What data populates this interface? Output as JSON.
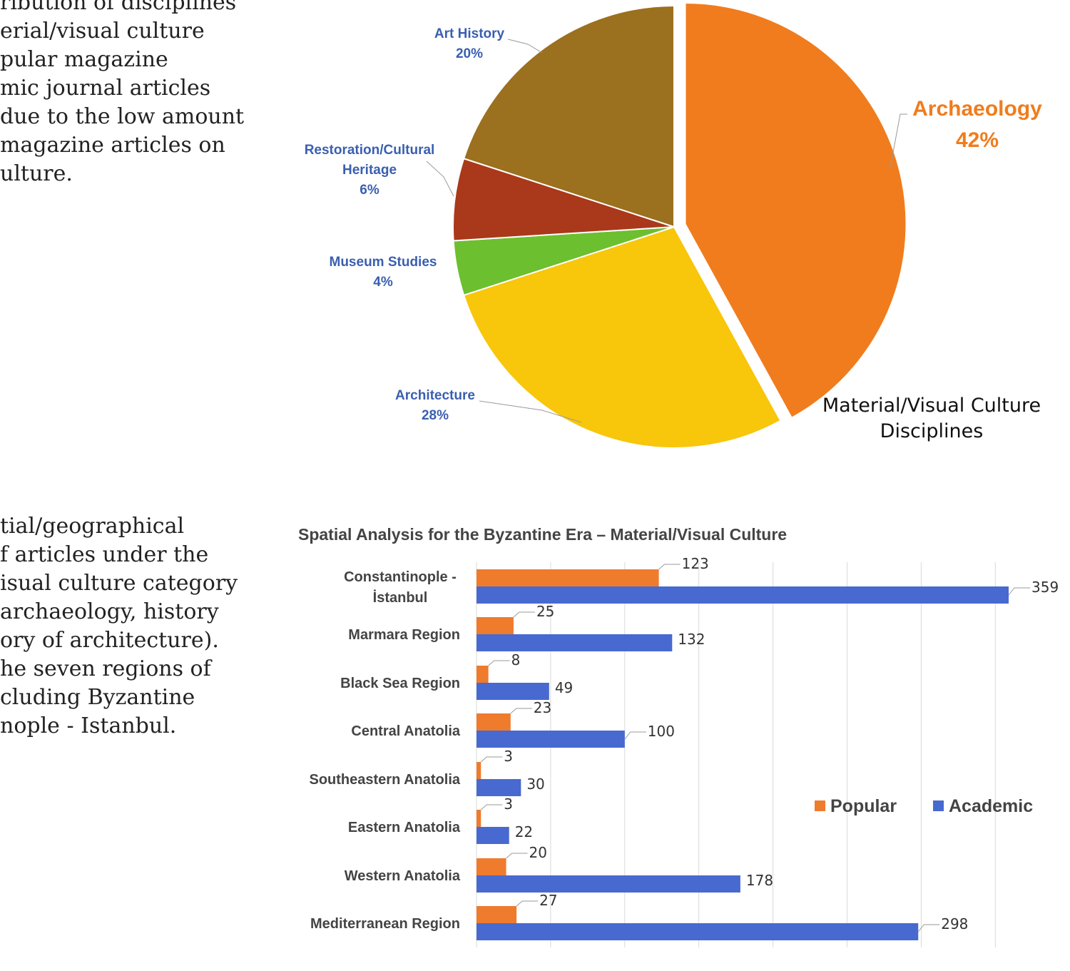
{
  "captions": {
    "pie_lines": [
      "ribution of disciplines",
      "erial/visual culture",
      "pular magazine",
      "mic journal articles",
      "due to the low amount",
      " magazine articles on",
      "ulture."
    ],
    "bar_lines": [
      "tial/geographical",
      "f articles under the",
      "isual culture category",
      "archaeology, history",
      "ory of architecture).",
      "he seven regions of",
      "cluding Byzantine",
      "nople - Istanbul."
    ]
  },
  "chart_data": [
    {
      "type": "pie",
      "title_lines": [
        "Material/Visual Culture",
        "Disciplines"
      ],
      "slices": [
        {
          "label": "Archaeology",
          "value": 42,
          "pct": "42%",
          "color": "#f07c1d",
          "exploded": true
        },
        {
          "label": "Architecture",
          "value": 28,
          "pct": "28%",
          "color": "#f8c60a"
        },
        {
          "label": "Museum Studies",
          "value": 4,
          "pct": "4%",
          "color": "#6cbf2e"
        },
        {
          "label": "Restoration/Cultural Heritage",
          "value": 6,
          "pct": "6%",
          "color": "#a9391a"
        },
        {
          "label": "Art History",
          "value": 20,
          "pct": "20%",
          "color": "#9b701e"
        }
      ],
      "label_lines": {
        "Archaeology": [
          "Archaeology",
          "42%"
        ],
        "Architecture": [
          "Architecture",
          "28%"
        ],
        "Museum Studies": [
          "Museum Studies",
          "4%"
        ],
        "Restoration/Cultural Heritage": [
          "Restoration/Cultural",
          "Heritage",
          "6%"
        ],
        "Art History": [
          "Art History",
          "20%"
        ]
      }
    },
    {
      "type": "bar",
      "orientation": "horizontal",
      "title": "Spatial Analysis for the Byzantine Era – Material/Visual Culture",
      "categories": [
        "Constantinople - İstanbul",
        "Marmara Region",
        "Black Sea Region",
        "Central Anatolia",
        "Southeastern Anatolia",
        "Eastern Anatolia",
        "Western Anatolia",
        "Mediterranean Region"
      ],
      "category_lines": [
        [
          "Constantinople -",
          "İstanbul"
        ],
        [
          "Marmara Region"
        ],
        [
          "Black Sea Region"
        ],
        [
          "Central Anatolia"
        ],
        [
          "Southeastern Anatolia"
        ],
        [
          "Eastern Anatolia"
        ],
        [
          "Western Anatolia"
        ],
        [
          "Mediterranean Region"
        ]
      ],
      "series": [
        {
          "name": "Popular",
          "color": "#ef7b2d",
          "values": [
            123,
            25,
            8,
            23,
            3,
            3,
            20,
            27
          ]
        },
        {
          "name": "Academic",
          "color": "#4869cf",
          "values": [
            359,
            132,
            49,
            100,
            30,
            22,
            178,
            298
          ]
        }
      ],
      "xlim": [
        0,
        350
      ],
      "grid_step": 50,
      "legend": "right"
    }
  ]
}
